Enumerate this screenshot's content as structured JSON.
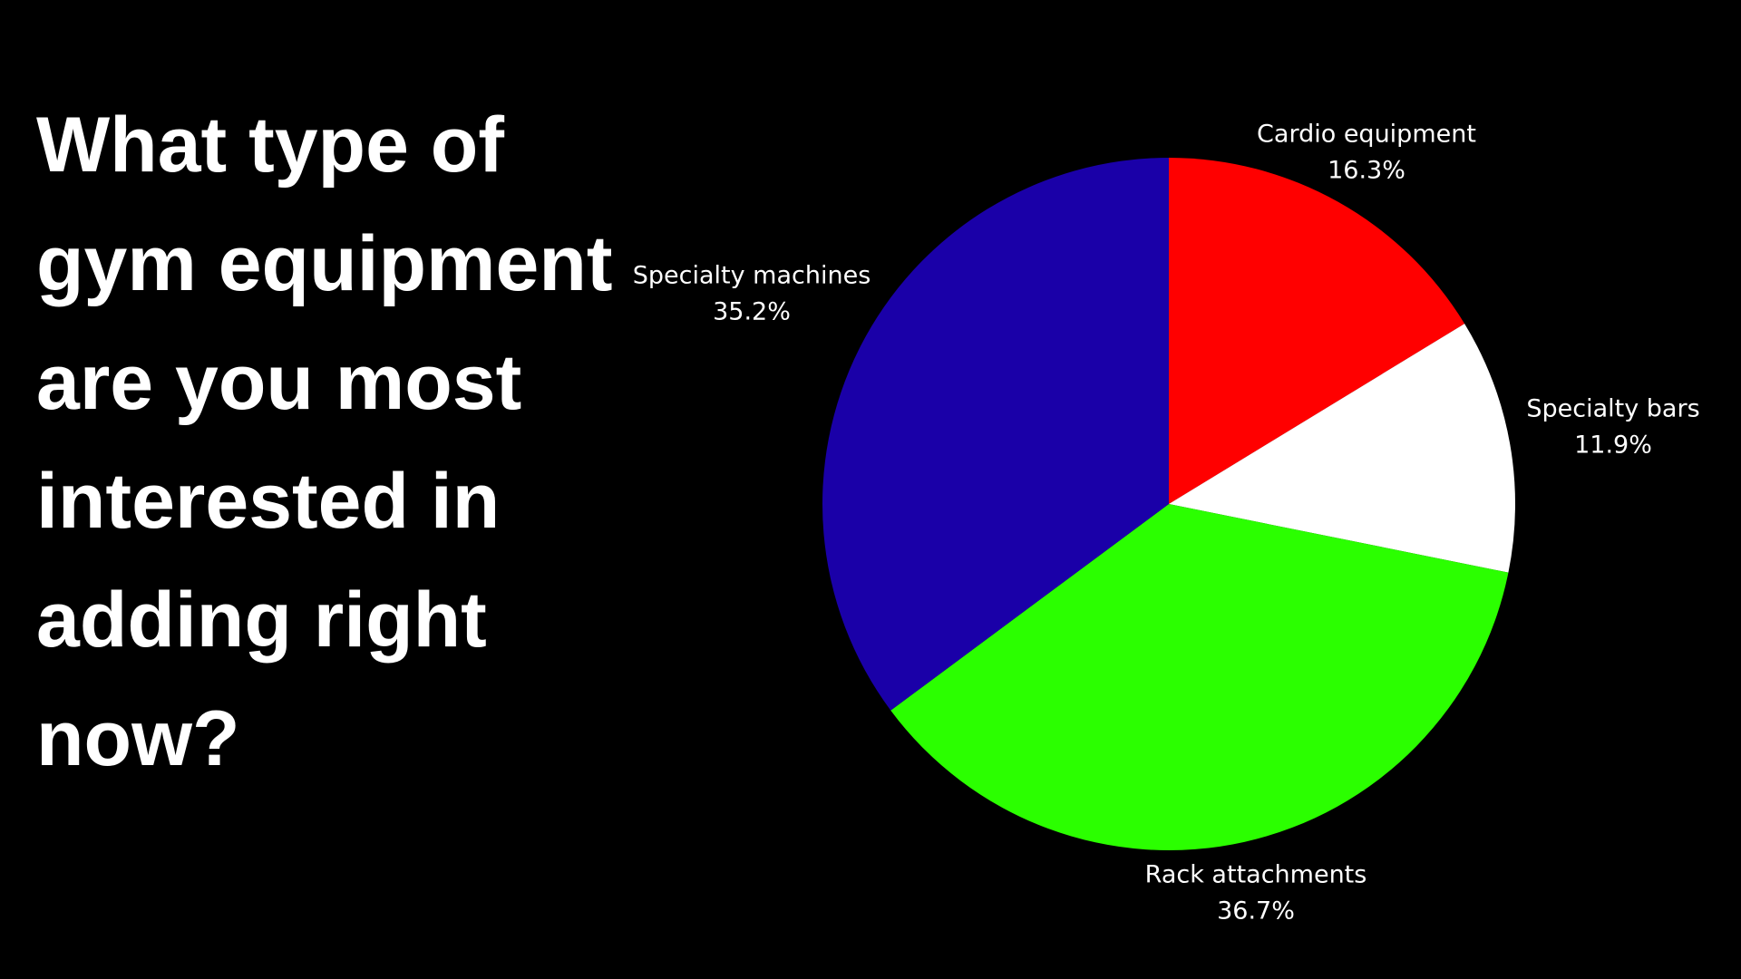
{
  "chart_data": {
    "type": "pie",
    "title": "What type of gym equipment are you most interested in adding right now?",
    "categories": [
      "Cardio equipment",
      "Specialty bars",
      "Rack attachments",
      "Specialty machines"
    ],
    "values": [
      16.3,
      11.9,
      36.7,
      35.2
    ],
    "value_labels": [
      "16.3%",
      "11.9%",
      "36.7%",
      "35.2%"
    ],
    "colors": [
      "#ff0000",
      "#ffffff",
      "#2bff00",
      "#1a00a8"
    ]
  }
}
